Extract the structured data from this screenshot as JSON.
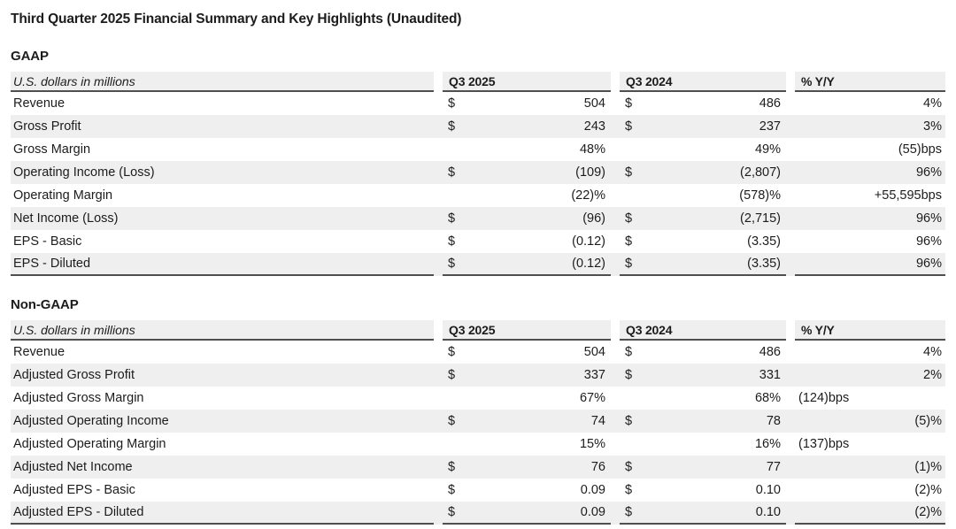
{
  "title": "Third Quarter 2025 Financial Summary and Key Highlights (Unaudited)",
  "table": {
    "metric_header": "U.S. dollars in millions",
    "col_headers": [
      "Q3 2025",
      "Q3 2024",
      "% Y/Y"
    ]
  },
  "colors": {
    "row_stripe": "#efefef",
    "rule": "#4f4f4f",
    "text": "#1c1c1c"
  },
  "sections": [
    {
      "name": "GAAP",
      "rows": [
        {
          "label": "Revenue",
          "cur1": "$",
          "v1": "504",
          "cur2": "$",
          "v2": "486",
          "yoy": "4%",
          "yoy_align": "right"
        },
        {
          "label": "Gross Profit",
          "cur1": "$",
          "v1": "243",
          "cur2": "$",
          "v2": "237",
          "yoy": "3%",
          "yoy_align": "right"
        },
        {
          "label": "Gross Margin",
          "cur1": "",
          "v1": "48%",
          "cur2": "",
          "v2": "49%",
          "yoy": "(55)bps",
          "yoy_align": "right"
        },
        {
          "label": "Operating Income (Loss)",
          "cur1": "$",
          "v1": "(109)",
          "cur2": "$",
          "v2": "(2,807)",
          "yoy": "96%",
          "yoy_align": "right"
        },
        {
          "label": "Operating Margin",
          "cur1": "",
          "v1": "(22)%",
          "cur2": "",
          "v2": "(578)%",
          "yoy": "+55,595bps",
          "yoy_align": "right"
        },
        {
          "label": "Net Income (Loss)",
          "cur1": "$",
          "v1": "(96)",
          "cur2": "$",
          "v2": "(2,715)",
          "yoy": "96%",
          "yoy_align": "right"
        },
        {
          "label": "EPS - Basic",
          "cur1": "$",
          "v1": "(0.12)",
          "cur2": "$",
          "v2": "(3.35)",
          "yoy": "96%",
          "yoy_align": "right"
        },
        {
          "label": "EPS - Diluted",
          "cur1": "$",
          "v1": "(0.12)",
          "cur2": "$",
          "v2": "(3.35)",
          "yoy": "96%",
          "yoy_align": "right"
        }
      ]
    },
    {
      "name": "Non-GAAP",
      "rows": [
        {
          "label": "Revenue",
          "cur1": "$",
          "v1": "504",
          "cur2": "$",
          "v2": "486",
          "yoy": "4%",
          "yoy_align": "right"
        },
        {
          "label": "Adjusted Gross Profit",
          "cur1": "$",
          "v1": "337",
          "cur2": "$",
          "v2": "331",
          "yoy": "2%",
          "yoy_align": "right"
        },
        {
          "label": "Adjusted Gross Margin",
          "cur1": "",
          "v1": "67%",
          "cur2": "",
          "v2": "68%",
          "yoy": "(124)bps",
          "yoy_align": "left"
        },
        {
          "label": "Adjusted Operating Income",
          "cur1": "$",
          "v1": "74",
          "cur2": "$",
          "v2": "78",
          "yoy": "(5)%",
          "yoy_align": "right"
        },
        {
          "label": "Adjusted Operating Margin",
          "cur1": "",
          "v1": "15%",
          "cur2": "",
          "v2": "16%",
          "yoy": "(137)bps",
          "yoy_align": "left"
        },
        {
          "label": "Adjusted Net Income",
          "cur1": "$",
          "v1": "76",
          "cur2": "$",
          "v2": "77",
          "yoy": "(1)%",
          "yoy_align": "right"
        },
        {
          "label": "Adjusted EPS - Basic",
          "cur1": "$",
          "v1": "0.09",
          "cur2": "$",
          "v2": "0.10",
          "yoy": "(2)%",
          "yoy_align": "right"
        },
        {
          "label": "Adjusted EPS - Diluted",
          "cur1": "$",
          "v1": "0.09",
          "cur2": "$",
          "v2": "0.10",
          "yoy": "(2)%",
          "yoy_align": "right"
        }
      ]
    }
  ]
}
